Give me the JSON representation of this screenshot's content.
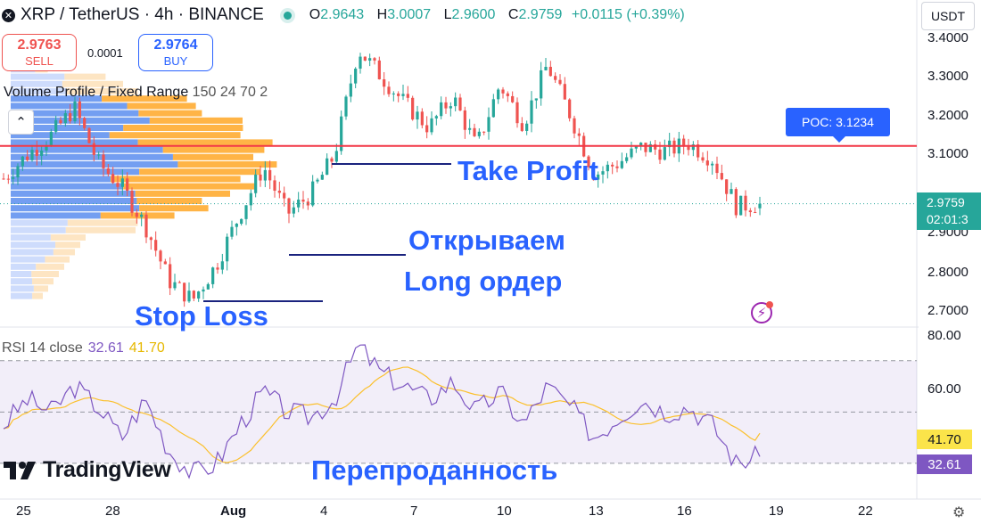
{
  "header": {
    "symbol": "XRP / TetherUS · 4h · BINANCE",
    "open_key": "O",
    "open": "2.9643",
    "high_key": "H",
    "high": "3.0007",
    "low_key": "L",
    "low": "2.9600",
    "close_key": "C",
    "close": "2.9759",
    "change": "+0.0115 (+0.39%)"
  },
  "trade": {
    "sell_price": "2.9763",
    "sell_label": "SELL",
    "buy_price": "2.9764",
    "buy_label": "BUY",
    "spread": "0.0001"
  },
  "indicator_vp": {
    "name": "Volume Profile / Fixed Range",
    "params": "150 24 70 2"
  },
  "quote_currency": "USDT",
  "price_axis": [
    "3.4000",
    "3.3000",
    "3.2000",
    "3.1000",
    "3.0000",
    "2.9000",
    "2.8000",
    "2.7000"
  ],
  "current_price": {
    "value": "2.9759",
    "countdown": "02:01:3"
  },
  "poc": {
    "label": "POC: 3.1234",
    "value": 3.1234
  },
  "annotations": {
    "take_profit": "Take Profit",
    "open_long_1": "Открываем",
    "open_long_2": "Long ордер",
    "stop_loss": "Stop Loss",
    "oversold": "Перепроданность"
  },
  "rsi": {
    "name": "RSI 14 close",
    "rsi_value": "32.61",
    "ma_value": "41.70",
    "axis": [
      "80.00",
      "60.00"
    ]
  },
  "time_axis": [
    "25",
    "28",
    "Aug",
    "4",
    "7",
    "10",
    "13",
    "16",
    "19",
    "22"
  ],
  "logo_text": "TradingView",
  "colors": {
    "up": "#26a69a",
    "down": "#ef5350",
    "accent": "#2962ff",
    "rsi_line": "#7e57c2",
    "rsi_ma": "#fbc02d",
    "poc_line": "#f23645"
  },
  "chart_data": {
    "type": "candlestick",
    "title": "XRP / TetherUS · 4h · BINANCE",
    "price_range": [
      2.68,
      3.45
    ],
    "ohlc_anchor_closes": [
      3.04,
      3.1,
      3.15,
      3.22,
      3.08,
      3.02,
      2.92,
      2.78,
      2.73,
      2.82,
      2.95,
      3.07,
      2.95,
      3.0,
      3.1,
      3.37,
      3.3,
      3.23,
      3.17,
      3.25,
      3.12,
      3.28,
      3.18,
      3.33,
      3.2,
      3.05,
      3.08,
      3.12,
      3.11,
      3.13,
      3.09,
      2.97,
      2.9759
    ],
    "rsi": {
      "range": [
        23,
        80
      ],
      "levels": [
        70,
        50,
        30
      ],
      "latest": 32.61,
      "ma_latest": 41.7
    }
  }
}
